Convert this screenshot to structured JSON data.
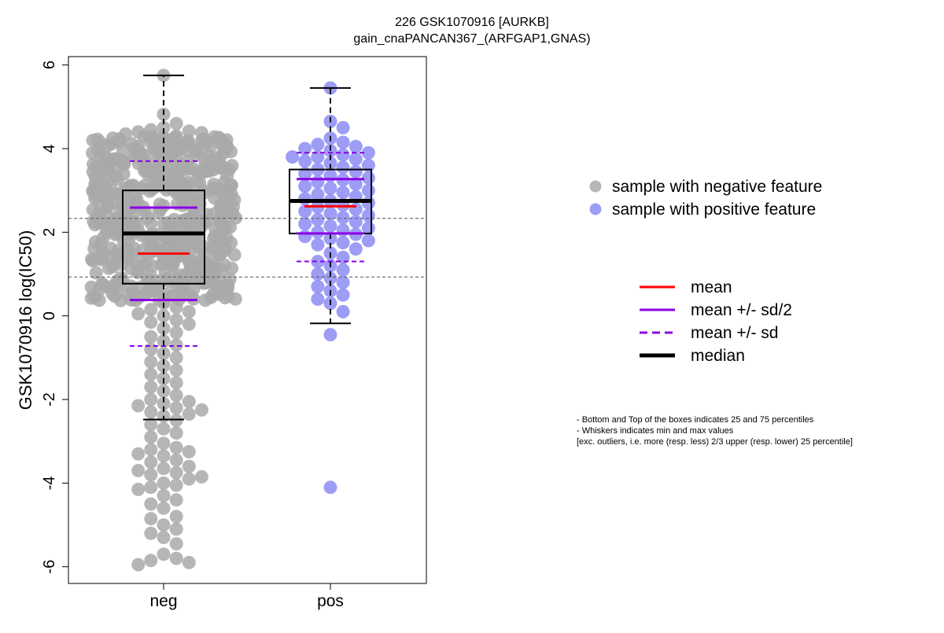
{
  "chart_data": {
    "type": "beeswarm-boxplot",
    "title": "226 GSK1070916 [AURKB]",
    "subtitle": "gain_cnaPANCAN367_(ARFGAP1,GNAS)",
    "xlabel": "",
    "ylabel": "GSK1070916 log(IC50)",
    "categories": [
      "neg",
      "pos"
    ],
    "ylim": [
      -6.4,
      6.2
    ],
    "yticks": [
      -6,
      -4,
      -2,
      0,
      2,
      4,
      6
    ],
    "reference_lines": [
      2.33,
      0.93
    ],
    "groups": [
      {
        "name": "neg",
        "color": "#a9a9a9",
        "stats": {
          "min": -2.48,
          "q1": 0.77,
          "median": 1.97,
          "q3": 3.0,
          "max": 5.75,
          "mean": 1.49,
          "mean_minus_half_sd": 0.38,
          "mean_plus_half_sd": 2.59,
          "mean_minus_sd": -0.72,
          "mean_plus_sd": 3.7
        },
        "points_dense_band": [
          0.35,
          4.3
        ],
        "points_sparse": [
          5.75,
          4.82,
          4.6,
          4.5,
          4.45,
          4.42,
          4.4,
          4.38,
          4.35,
          4.3,
          4.28,
          4.25,
          4.2,
          4.15,
          4.1,
          4.05,
          4.0,
          0.3,
          0.2,
          0.15,
          0.1,
          0.05,
          0.0,
          -0.1,
          -0.15,
          -0.2,
          -0.3,
          -0.4,
          -0.5,
          -0.6,
          -0.7,
          -0.8,
          -0.9,
          -1.0,
          -1.1,
          -1.2,
          -1.3,
          -1.4,
          -1.5,
          -1.6,
          -1.7,
          -1.8,
          -1.9,
          -2.0,
          -2.05,
          -2.1,
          -2.15,
          -2.2,
          -2.25,
          -2.3,
          -2.35,
          -2.4,
          -2.5,
          -2.6,
          -2.7,
          -2.8,
          -2.9,
          -3.05,
          -3.15,
          -3.2,
          -3.25,
          -3.3,
          -3.35,
          -3.45,
          -3.5,
          -3.6,
          -3.65,
          -3.7,
          -3.75,
          -3.8,
          -3.85,
          -3.9,
          -4.0,
          -4.05,
          -4.1,
          -4.15,
          -4.3,
          -4.4,
          -4.5,
          -4.6,
          -4.8,
          -4.85,
          -5.0,
          -5.1,
          -5.2,
          -5.3,
          -5.45,
          -5.7,
          -5.8,
          -5.85,
          -5.9,
          -5.95
        ]
      },
      {
        "name": "pos",
        "color": "#8c8cf5",
        "stats": {
          "min": -0.18,
          "q1": 1.97,
          "median": 2.75,
          "q3": 3.5,
          "max": 5.45,
          "mean": 2.62,
          "mean_minus_half_sd": 1.97,
          "mean_plus_half_sd": 3.27,
          "mean_minus_sd": 1.3,
          "mean_plus_sd": 3.9
        },
        "points": [
          5.45,
          4.65,
          4.5,
          4.25,
          4.15,
          4.1,
          4.05,
          4.0,
          3.95,
          3.9,
          3.85,
          3.8,
          3.8,
          3.75,
          3.7,
          3.65,
          3.6,
          3.55,
          3.5,
          3.45,
          3.4,
          3.35,
          3.3,
          3.25,
          3.2,
          3.15,
          3.1,
          3.05,
          3.0,
          2.95,
          2.9,
          2.85,
          2.8,
          2.75,
          2.7,
          2.65,
          2.6,
          2.55,
          2.5,
          2.45,
          2.4,
          2.35,
          2.3,
          2.25,
          2.2,
          2.15,
          2.1,
          2.05,
          2.0,
          1.95,
          1.9,
          1.85,
          1.8,
          1.75,
          1.7,
          1.6,
          1.5,
          1.4,
          1.3,
          1.2,
          1.1,
          1.0,
          0.9,
          0.8,
          0.7,
          0.6,
          0.5,
          0.4,
          0.3,
          0.1,
          -0.45,
          -4.1
        ]
      }
    ],
    "legend_points": [
      {
        "label": "sample with negative feature",
        "color": "#a9a9a9"
      },
      {
        "label": "sample with positive feature",
        "color": "#8c8cf5"
      }
    ],
    "legend_lines": [
      {
        "label": "mean",
        "color": "#ff0000",
        "style": "solid"
      },
      {
        "label": "mean +/- sd/2",
        "color": "#8a00e6",
        "style": "solid"
      },
      {
        "label": "mean +/- sd",
        "color": "#8a00e6",
        "style": "dashed"
      },
      {
        "label": "median",
        "color": "#000000",
        "style": "thick"
      }
    ],
    "notes": [
      "- Bottom and Top of the boxes indicates 25 and 75 percentiles",
      "- Whiskers indicates min and max values",
      "[exc. outliers, i.e. more (resp. less) 2/3 upper (resp. lower) 25 percentile]"
    ]
  }
}
